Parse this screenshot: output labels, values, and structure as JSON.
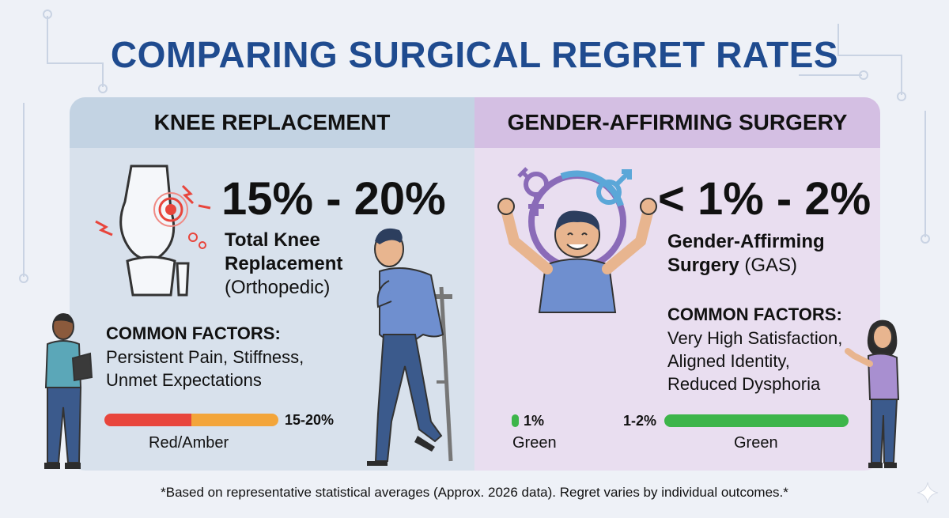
{
  "title": "COMPARING SURGICAL REGRET RATES",
  "knee": {
    "header": "KNEE REPLACEMENT",
    "rate": "15% - 20%",
    "procedure_bold_1": "Total Knee",
    "procedure_bold_2": "Replacement",
    "procedure_detail": "(Orthopedic)",
    "factors_heading": "COMMON FACTORS:",
    "factors_line1": "Persistent Pain, Stiffness,",
    "factors_line2": "Unmet Expectations",
    "bar": {
      "value_label": "15-20%",
      "color_label": "Red/Amber",
      "fraction_red": 0.5,
      "color_red": "#e8453c",
      "color_amber": "#f3a53a"
    }
  },
  "gas": {
    "header": "GENDER-AFFIRMING SURGERY",
    "rate": "< 1% - 2%",
    "procedure_bold_1": "Gender-Affirming",
    "procedure_bold_2": "Surgery",
    "procedure_detail": "(GAS)",
    "factors_heading": "COMMON FACTORS:",
    "factors_line1": "Very High Satisfaction,",
    "factors_line2": "Aligned Identity,",
    "factors_line3": "Reduced Dysphoria",
    "bar_small": {
      "value_label": "1%",
      "color_label": "Green",
      "color": "#3db54a"
    },
    "bar_large": {
      "value_label": "1-2%",
      "color_label": "Green",
      "color": "#3db54a"
    }
  },
  "footnote": "*Based on representative statistical averages (Approx. 2026 data). Regret varies by individual outcomes.*"
}
